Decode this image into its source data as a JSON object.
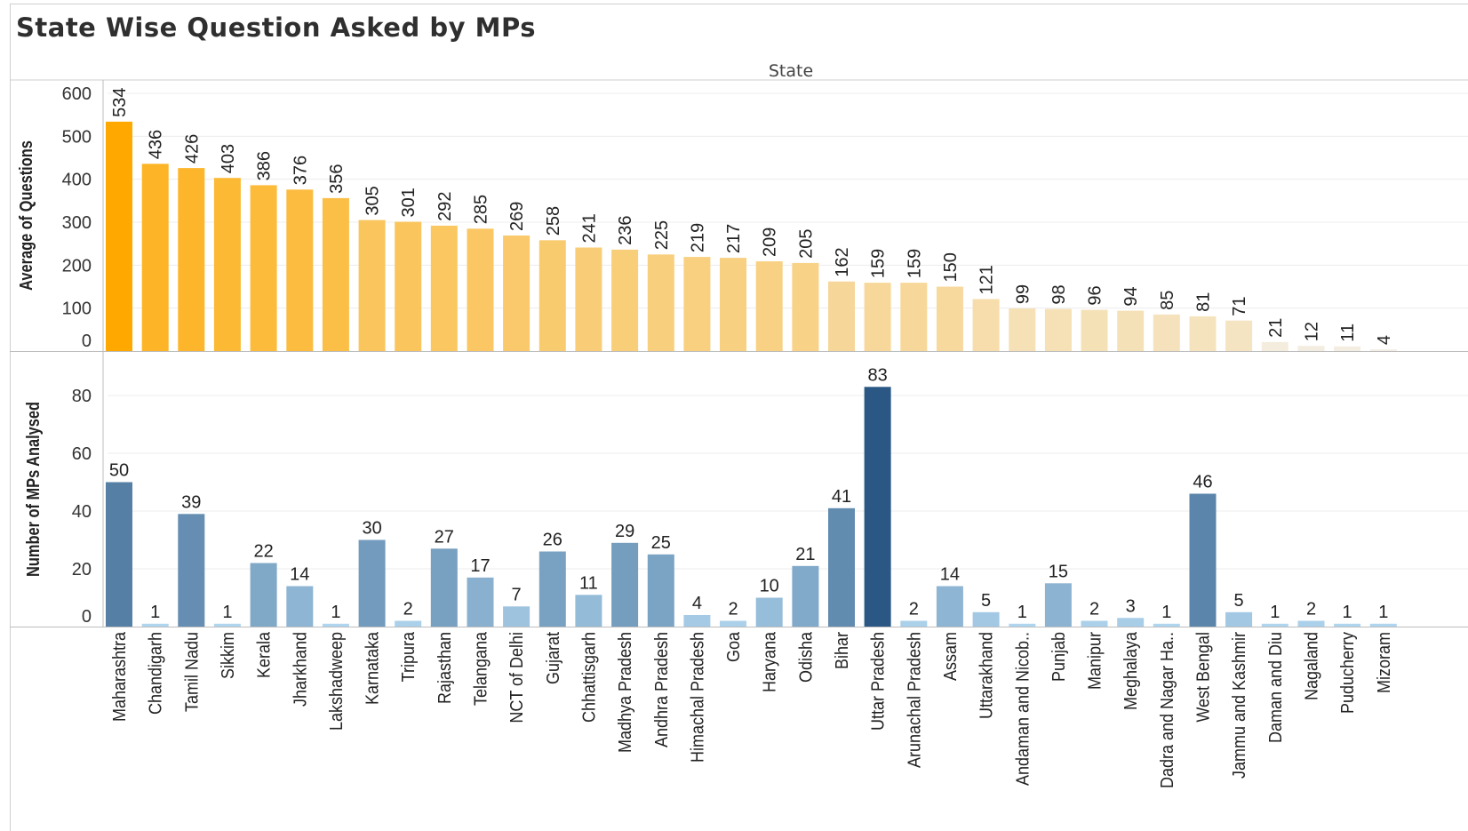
{
  "title": "State Wise Question Asked by MPs",
  "chart_data": [
    {
      "type": "bar",
      "xlabel": "State",
      "ylabel": "Average of Questions",
      "ylim": [
        0,
        600
      ],
      "yticks": [
        0,
        100,
        200,
        300,
        400,
        500,
        600
      ],
      "colors": {
        "high": "#ffa900",
        "low": "#f3efe6"
      },
      "categories": [
        "Maharashtra",
        "Chandigarh",
        "Tamil Nadu",
        "Sikkim",
        "Kerala",
        "Jharkhand",
        "Lakshadweep",
        "Karnataka",
        "Tripura",
        "Rajasthan",
        "Telangana",
        "NCT of Delhi",
        "Gujarat",
        "Chhattisgarh",
        "Madhya Pradesh",
        "Andhra Pradesh",
        "Himachal Pradesh",
        "Goa",
        "Haryana",
        "Odisha",
        "Bihar",
        "Uttar Pradesh",
        "Arunachal Pradesh",
        "Assam",
        "Uttarakhand",
        "Andaman and Nicob..",
        "Punjab",
        "Manipur",
        "Meghalaya",
        "Dadra and Nagar Ha..",
        "West Bengal",
        "Jammu and Kashmir",
        "Daman and Diu",
        "Nagaland",
        "Puducherry",
        "Mizoram"
      ],
      "values": [
        534,
        436,
        426,
        403,
        386,
        376,
        356,
        305,
        301,
        292,
        285,
        269,
        258,
        241,
        236,
        225,
        219,
        217,
        209,
        205,
        162,
        159,
        159,
        150,
        121,
        99,
        98,
        96,
        94,
        85,
        81,
        71,
        21,
        12,
        11,
        4
      ]
    },
    {
      "type": "bar",
      "xlabel": "State",
      "ylabel": "Number of MPs Analysed",
      "ylim": [
        0,
        90
      ],
      "yticks": [
        0,
        20,
        40,
        60,
        80
      ],
      "colors": {
        "high": "#2a5783",
        "low": "#b0d5ee"
      },
      "categories": [
        "Maharashtra",
        "Chandigarh",
        "Tamil Nadu",
        "Sikkim",
        "Kerala",
        "Jharkhand",
        "Lakshadweep",
        "Karnataka",
        "Tripura",
        "Rajasthan",
        "Telangana",
        "NCT of Delhi",
        "Gujarat",
        "Chhattisgarh",
        "Madhya Pradesh",
        "Andhra Pradesh",
        "Himachal Pradesh",
        "Goa",
        "Haryana",
        "Odisha",
        "Bihar",
        "Uttar Pradesh",
        "Arunachal Pradesh",
        "Assam",
        "Uttarakhand",
        "Andaman and Nicob..",
        "Punjab",
        "Manipur",
        "Meghalaya",
        "Dadra and Nagar Ha..",
        "West Bengal",
        "Jammu and Kashmir",
        "Daman and Diu",
        "Nagaland",
        "Puducherry",
        "Mizoram"
      ],
      "values": [
        50,
        1,
        39,
        1,
        22,
        14,
        1,
        30,
        2,
        27,
        17,
        7,
        26,
        11,
        29,
        25,
        4,
        2,
        10,
        21,
        41,
        83,
        2,
        14,
        5,
        1,
        15,
        2,
        3,
        1,
        46,
        5,
        1,
        2,
        1,
        1
      ]
    }
  ]
}
